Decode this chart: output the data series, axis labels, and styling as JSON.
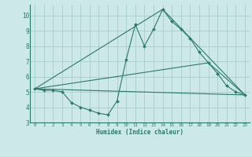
{
  "xlabel": "Humidex (Indice chaleur)",
  "bg_color": "#cce8e8",
  "grid_color": "#aacccc",
  "line_color": "#2a7a6a",
  "xlim": [
    -0.5,
    23.5
  ],
  "ylim": [
    3.0,
    10.7
  ],
  "xticks": [
    0,
    1,
    2,
    3,
    4,
    5,
    6,
    7,
    8,
    9,
    10,
    11,
    12,
    13,
    14,
    15,
    16,
    17,
    18,
    19,
    20,
    21,
    22,
    23
  ],
  "yticks": [
    3,
    4,
    5,
    6,
    7,
    8,
    9,
    10
  ],
  "series1_x": [
    0,
    1,
    2,
    3,
    4,
    5,
    6,
    7,
    8,
    9,
    10,
    11,
    12,
    13,
    14,
    15,
    16,
    17,
    18,
    19,
    20,
    21,
    22,
    23
  ],
  "series1_y": [
    5.2,
    5.1,
    5.1,
    5.0,
    4.3,
    4.0,
    3.8,
    3.6,
    3.5,
    4.4,
    7.1,
    9.4,
    8.0,
    9.1,
    10.4,
    9.6,
    9.1,
    8.5,
    7.6,
    6.9,
    6.2,
    5.4,
    5.0,
    4.8
  ],
  "series2_x": [
    0,
    14,
    23
  ],
  "series2_y": [
    5.2,
    10.4,
    4.8
  ],
  "series3_x": [
    0,
    19,
    23
  ],
  "series3_y": [
    5.2,
    6.9,
    4.8
  ],
  "series4_x": [
    0,
    23
  ],
  "series4_y": [
    5.2,
    4.8
  ]
}
